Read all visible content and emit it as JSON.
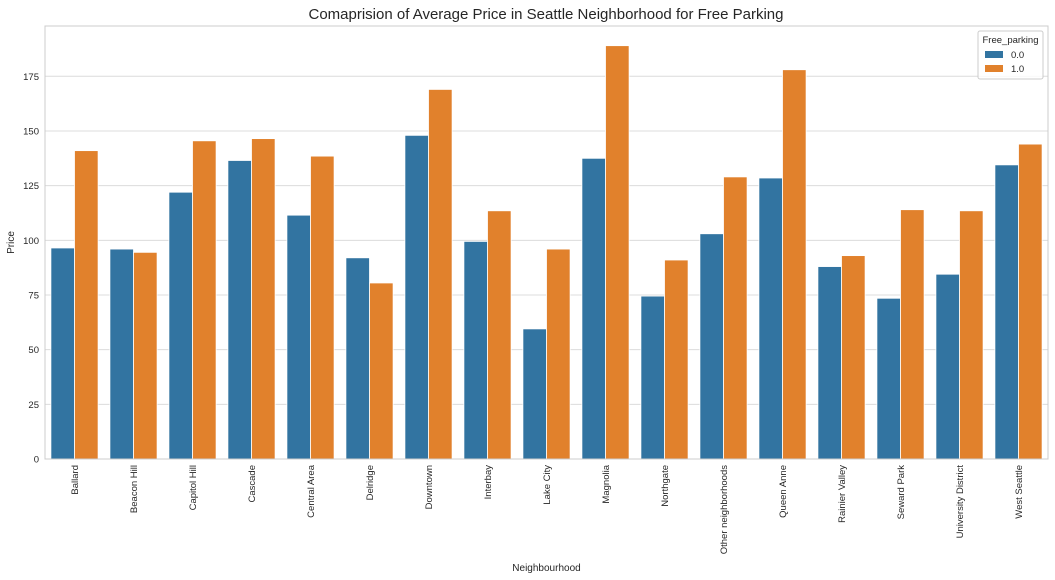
{
  "chart_data": {
    "type": "bar",
    "title": "Comaprision of Average Price in Seattle Neighborhood for Free Parking",
    "xlabel": "Neighbourhood",
    "ylabel": "Price",
    "ylim": [
      0,
      198
    ],
    "yticks": [
      0,
      25,
      50,
      75,
      100,
      125,
      150,
      175
    ],
    "grid": true,
    "legend": {
      "title": "Free_parking",
      "placement": "top-right"
    },
    "categories": [
      "Ballard",
      "Beacon Hill",
      "Capitol Hill",
      "Cascade",
      "Central Area",
      "Delridge",
      "Downtown",
      "Interbay",
      "Lake City",
      "Magnolia",
      "Northgate",
      "Other neighborhoods",
      "Queen Anne",
      "Rainier Valley",
      "Seward Park",
      "University District",
      "West Seattle"
    ],
    "series": [
      {
        "name": "0.0",
        "color": "#3274a1",
        "values": [
          96.5,
          96,
          122,
          136.5,
          111.5,
          92,
          148,
          99.5,
          59.5,
          137.5,
          74.5,
          103,
          128.5,
          88,
          73.5,
          84.5,
          134.5
        ]
      },
      {
        "name": "1.0",
        "color": "#e1812c",
        "values": [
          141,
          94.5,
          145.5,
          146.5,
          138.5,
          80.5,
          169,
          113.5,
          96,
          189,
          91,
          129,
          178,
          93,
          114,
          113.5,
          144
        ]
      }
    ]
  }
}
